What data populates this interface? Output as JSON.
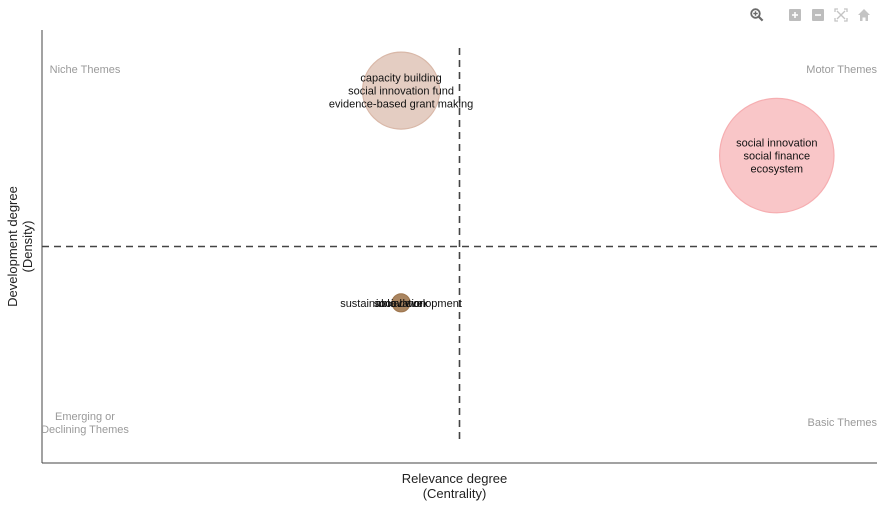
{
  "chart_data": {
    "type": "scatter",
    "title": "",
    "xlabel": [
      "Relevance degree",
      "(Centrality)"
    ],
    "ylabel": [
      "Development degree",
      "(Density)"
    ],
    "quadrant_labels": {
      "top_left": [
        "Niche Themes"
      ],
      "top_right": [
        "Motor Themes"
      ],
      "bottom_left": [
        "Emerging or",
        "Declining Themes"
      ],
      "bottom_right": [
        "Basic Themes"
      ]
    },
    "x_divider": 0.5,
    "y_divider": 0.5,
    "xlim": [
      0,
      1
    ],
    "ylim": [
      0,
      1
    ],
    "grid": false,
    "points": [
      {
        "x": 0.43,
        "y": 0.86,
        "size": 0.35,
        "color": "#D9B8A8",
        "labels": [
          "capacity building",
          "social innovation fund",
          "evidence-based grant making"
        ]
      },
      {
        "x": 0.88,
        "y": 0.71,
        "size": 0.52,
        "color": "#F6AEB1",
        "labels": [
          "social innovation",
          "social finance",
          "ecosystem"
        ]
      },
      {
        "x": 0.43,
        "y": 0.37,
        "size": 0.05,
        "color": "#A07850",
        "labels": [
          "sustainable development",
          "social work",
          "innovation"
        ]
      }
    ]
  },
  "modebar": [
    "zoom-icon",
    "zoom-in-icon",
    "zoom-out-icon",
    "autoscale-icon",
    "reset-axes-icon"
  ]
}
